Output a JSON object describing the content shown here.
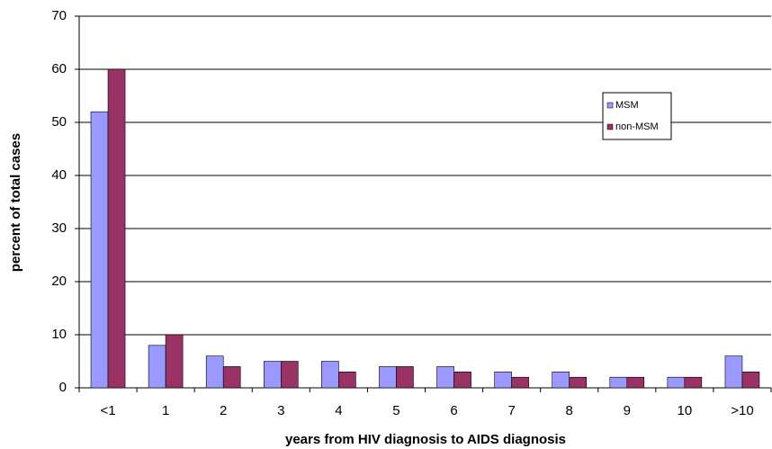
{
  "chart_data": {
    "type": "bar",
    "x_label": "years from HIV diagnosis to AIDS diagnosis",
    "y_label": "percent of total cases",
    "categories": [
      "<1",
      "1",
      "2",
      "3",
      "4",
      "5",
      "6",
      "7",
      "8",
      "9",
      "10",
      ">10"
    ],
    "series": [
      {
        "name": "MSM",
        "color": "#9999ff",
        "values": [
          52,
          8,
          6,
          5,
          5,
          4,
          4,
          3,
          3,
          2,
          2,
          6
        ]
      },
      {
        "name": "non-MSM",
        "color": "#993366",
        "values": [
          60,
          10,
          4,
          5,
          3,
          4,
          3,
          2,
          2,
          2,
          2,
          3
        ]
      }
    ],
    "ylim": [
      0,
      70
    ],
    "yticks": [
      0,
      10,
      20,
      30,
      40,
      50,
      60,
      70
    ],
    "grid": true,
    "legend": "upper right"
  }
}
